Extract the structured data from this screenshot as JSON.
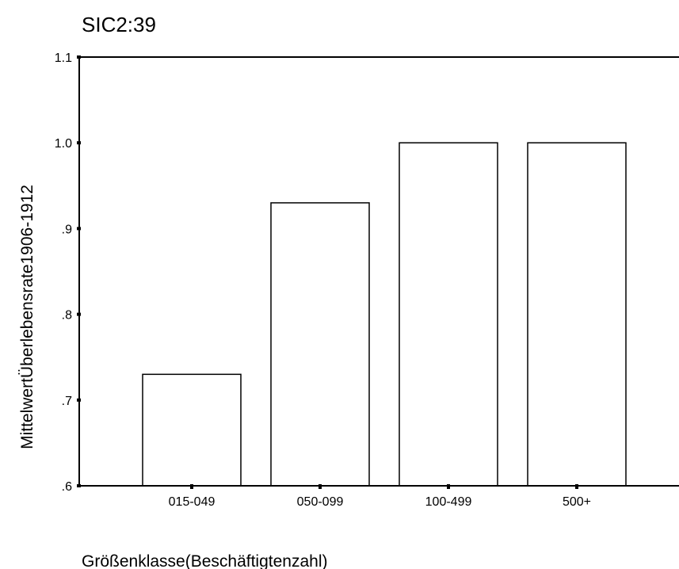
{
  "chart_data": {
    "type": "bar",
    "title": "SIC2:39",
    "xlabel": "Größenklasse(Beschäftigtenzahl)",
    "ylabel": "MittelwertÜberlebensrate1906-1912",
    "categories": [
      "015-049",
      "050-099",
      "100-499",
      "500+"
    ],
    "values": [
      0.73,
      0.93,
      1.0,
      1.0
    ],
    "ylim": [
      0.6,
      1.1
    ],
    "yticks": [
      0.6,
      0.7,
      0.8,
      0.9,
      1.0,
      1.1
    ],
    "ytick_labels": [
      ".6",
      ".7",
      ".8",
      ".9",
      "1.0",
      "1.1"
    ],
    "grid": false,
    "colors": {
      "bar_fill": "#ffffff",
      "bar_stroke": "#000000",
      "axis": "#000000"
    }
  }
}
